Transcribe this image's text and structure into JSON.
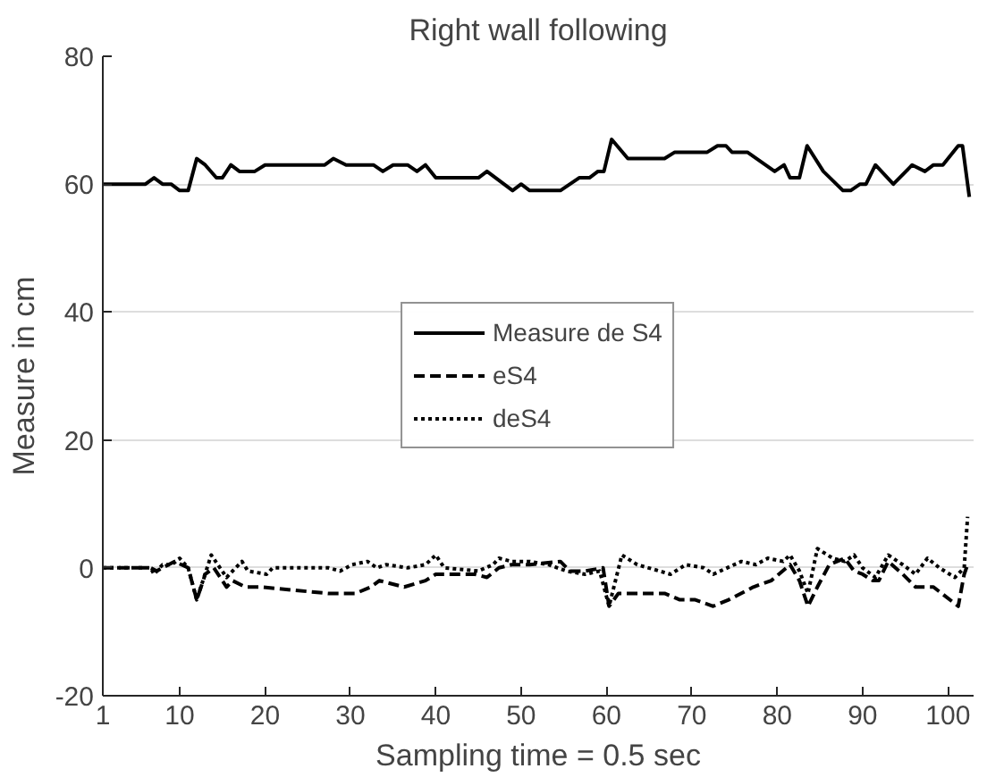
{
  "chart_data": {
    "type": "line",
    "title": "Right wall following",
    "xlabel": "Sampling time = 0.5 sec",
    "ylabel": "Measure in cm",
    "xlim": [
      1,
      103
    ],
    "ylim": [
      -20,
      80
    ],
    "xticks": [
      1,
      10,
      20,
      30,
      40,
      50,
      60,
      70,
      80,
      90,
      100
    ],
    "yticks": [
      -20,
      0,
      20,
      40,
      60,
      80
    ],
    "grid": "y",
    "legend": "center",
    "marker": "none",
    "series": [
      {
        "name": "Measure de S4",
        "color": "#000000",
        "line_style": "solid",
        "x": [
          1,
          6,
          7,
          8,
          9,
          10,
          11,
          12,
          13,
          14.3,
          15,
          16,
          17,
          18.8,
          20,
          27,
          28,
          29.5,
          32.7,
          33.8,
          35,
          36.7,
          37.8,
          38.8,
          40,
          45,
          46,
          49,
          50,
          51,
          54.6,
          56.8,
          58,
          59,
          59.7,
          60.6,
          62.5,
          66.8,
          68,
          71.8,
          73,
          74,
          74.7,
          76.5,
          79.7,
          80.8,
          81.5,
          82.6,
          83.5,
          85.4,
          87.7,
          88.6,
          89.7,
          90.4,
          91.5,
          93.6,
          95.8,
          97.3,
          98.3,
          99.4,
          101.2,
          101.7,
          102.5
        ],
        "values": [
          60,
          60,
          61,
          60,
          60,
          59,
          59,
          64,
          63,
          61,
          61,
          63,
          62,
          62,
          63,
          63,
          64,
          63,
          63,
          62,
          63,
          63,
          62,
          63,
          61,
          61,
          62,
          59,
          60,
          59,
          59,
          61,
          61,
          62,
          62,
          67,
          64,
          64,
          65,
          65,
          66,
          66,
          65,
          65,
          62,
          63,
          61,
          61,
          66,
          62,
          59,
          59,
          60,
          60,
          63,
          60,
          63,
          62,
          63,
          63,
          66,
          66,
          58
        ]
      },
      {
        "name": "eS4",
        "color": "#000000",
        "line_style": "dashed",
        "x": [
          1,
          6.6,
          7.3,
          9.4,
          11,
          12,
          13,
          14,
          15.5,
          16.2,
          17.7,
          19.5,
          27.4,
          30.6,
          32.4,
          33.4,
          36.3,
          38.8,
          40,
          44.6,
          46,
          47.4,
          48.9,
          51,
          54.6,
          55.7,
          57.5,
          59.6,
          60.3,
          61.4,
          64.6,
          66.8,
          68.6,
          70.4,
          72.5,
          74.3,
          77.2,
          79.3,
          81.5,
          82.6,
          83.6,
          84.7,
          86.1,
          87.9,
          89,
          90,
          91.2,
          91.9,
          93,
          94.7,
          96.2,
          98.3,
          101.2,
          101.9,
          102.3
        ],
        "values": [
          0,
          0,
          -0.5,
          1,
          0,
          -5,
          -1,
          0,
          -3,
          -2,
          -3,
          -3,
          -4,
          -4,
          -3,
          -2,
          -3,
          -2,
          -1,
          -1,
          -1.5,
          0,
          0.5,
          0.5,
          1,
          -0.5,
          -0.5,
          0,
          -6,
          -4,
          -4,
          -4,
          -5,
          -5,
          -6,
          -5,
          -3,
          -2,
          0.5,
          -2,
          -6,
          -3,
          0.5,
          1.5,
          -0.5,
          -1,
          -2,
          -2,
          1,
          -1,
          -3,
          -3,
          -6,
          -1,
          0.5
        ]
      },
      {
        "name": "deS4",
        "color": "#000000",
        "line_style": "dotted",
        "x": [
          1,
          6.6,
          7,
          8,
          9.1,
          10,
          11,
          12,
          13.7,
          15.5,
          16.2,
          17.3,
          18,
          20.2,
          20.9,
          27.4,
          28.8,
          30.2,
          32,
          33.1,
          34.2,
          36.7,
          38.8,
          40,
          41,
          45,
          46.7,
          47.4,
          48.9,
          51,
          53.2,
          55.3,
          57.5,
          59.2,
          60.3,
          61.8,
          63.6,
          67.5,
          69.3,
          71.4,
          72.5,
          75.8,
          77.5,
          78.9,
          80.7,
          81.5,
          82.6,
          83.6,
          84.7,
          86.5,
          87.9,
          89,
          90,
          91.5,
          93,
          94.7,
          96.2,
          97.6,
          99,
          100.8,
          101.9,
          102.3
        ],
        "values": [
          0,
          0,
          -1,
          0.5,
          0.5,
          1.5,
          0,
          -5,
          2,
          -1.5,
          -0.5,
          1,
          -0.5,
          -1,
          0,
          0,
          -0.5,
          0.5,
          1,
          0,
          0.5,
          0,
          0.5,
          2,
          0,
          -0.5,
          0.5,
          1.5,
          1,
          1,
          0.5,
          -0.5,
          -1,
          -0.5,
          -6,
          2,
          0.5,
          -1,
          0.5,
          0,
          -1,
          1,
          0.5,
          1.5,
          1,
          2,
          -0.5,
          -4,
          3,
          1.5,
          1,
          2,
          0,
          -1.5,
          2,
          0.5,
          -1,
          1.5,
          0,
          -1.5,
          0,
          8
        ]
      }
    ]
  }
}
